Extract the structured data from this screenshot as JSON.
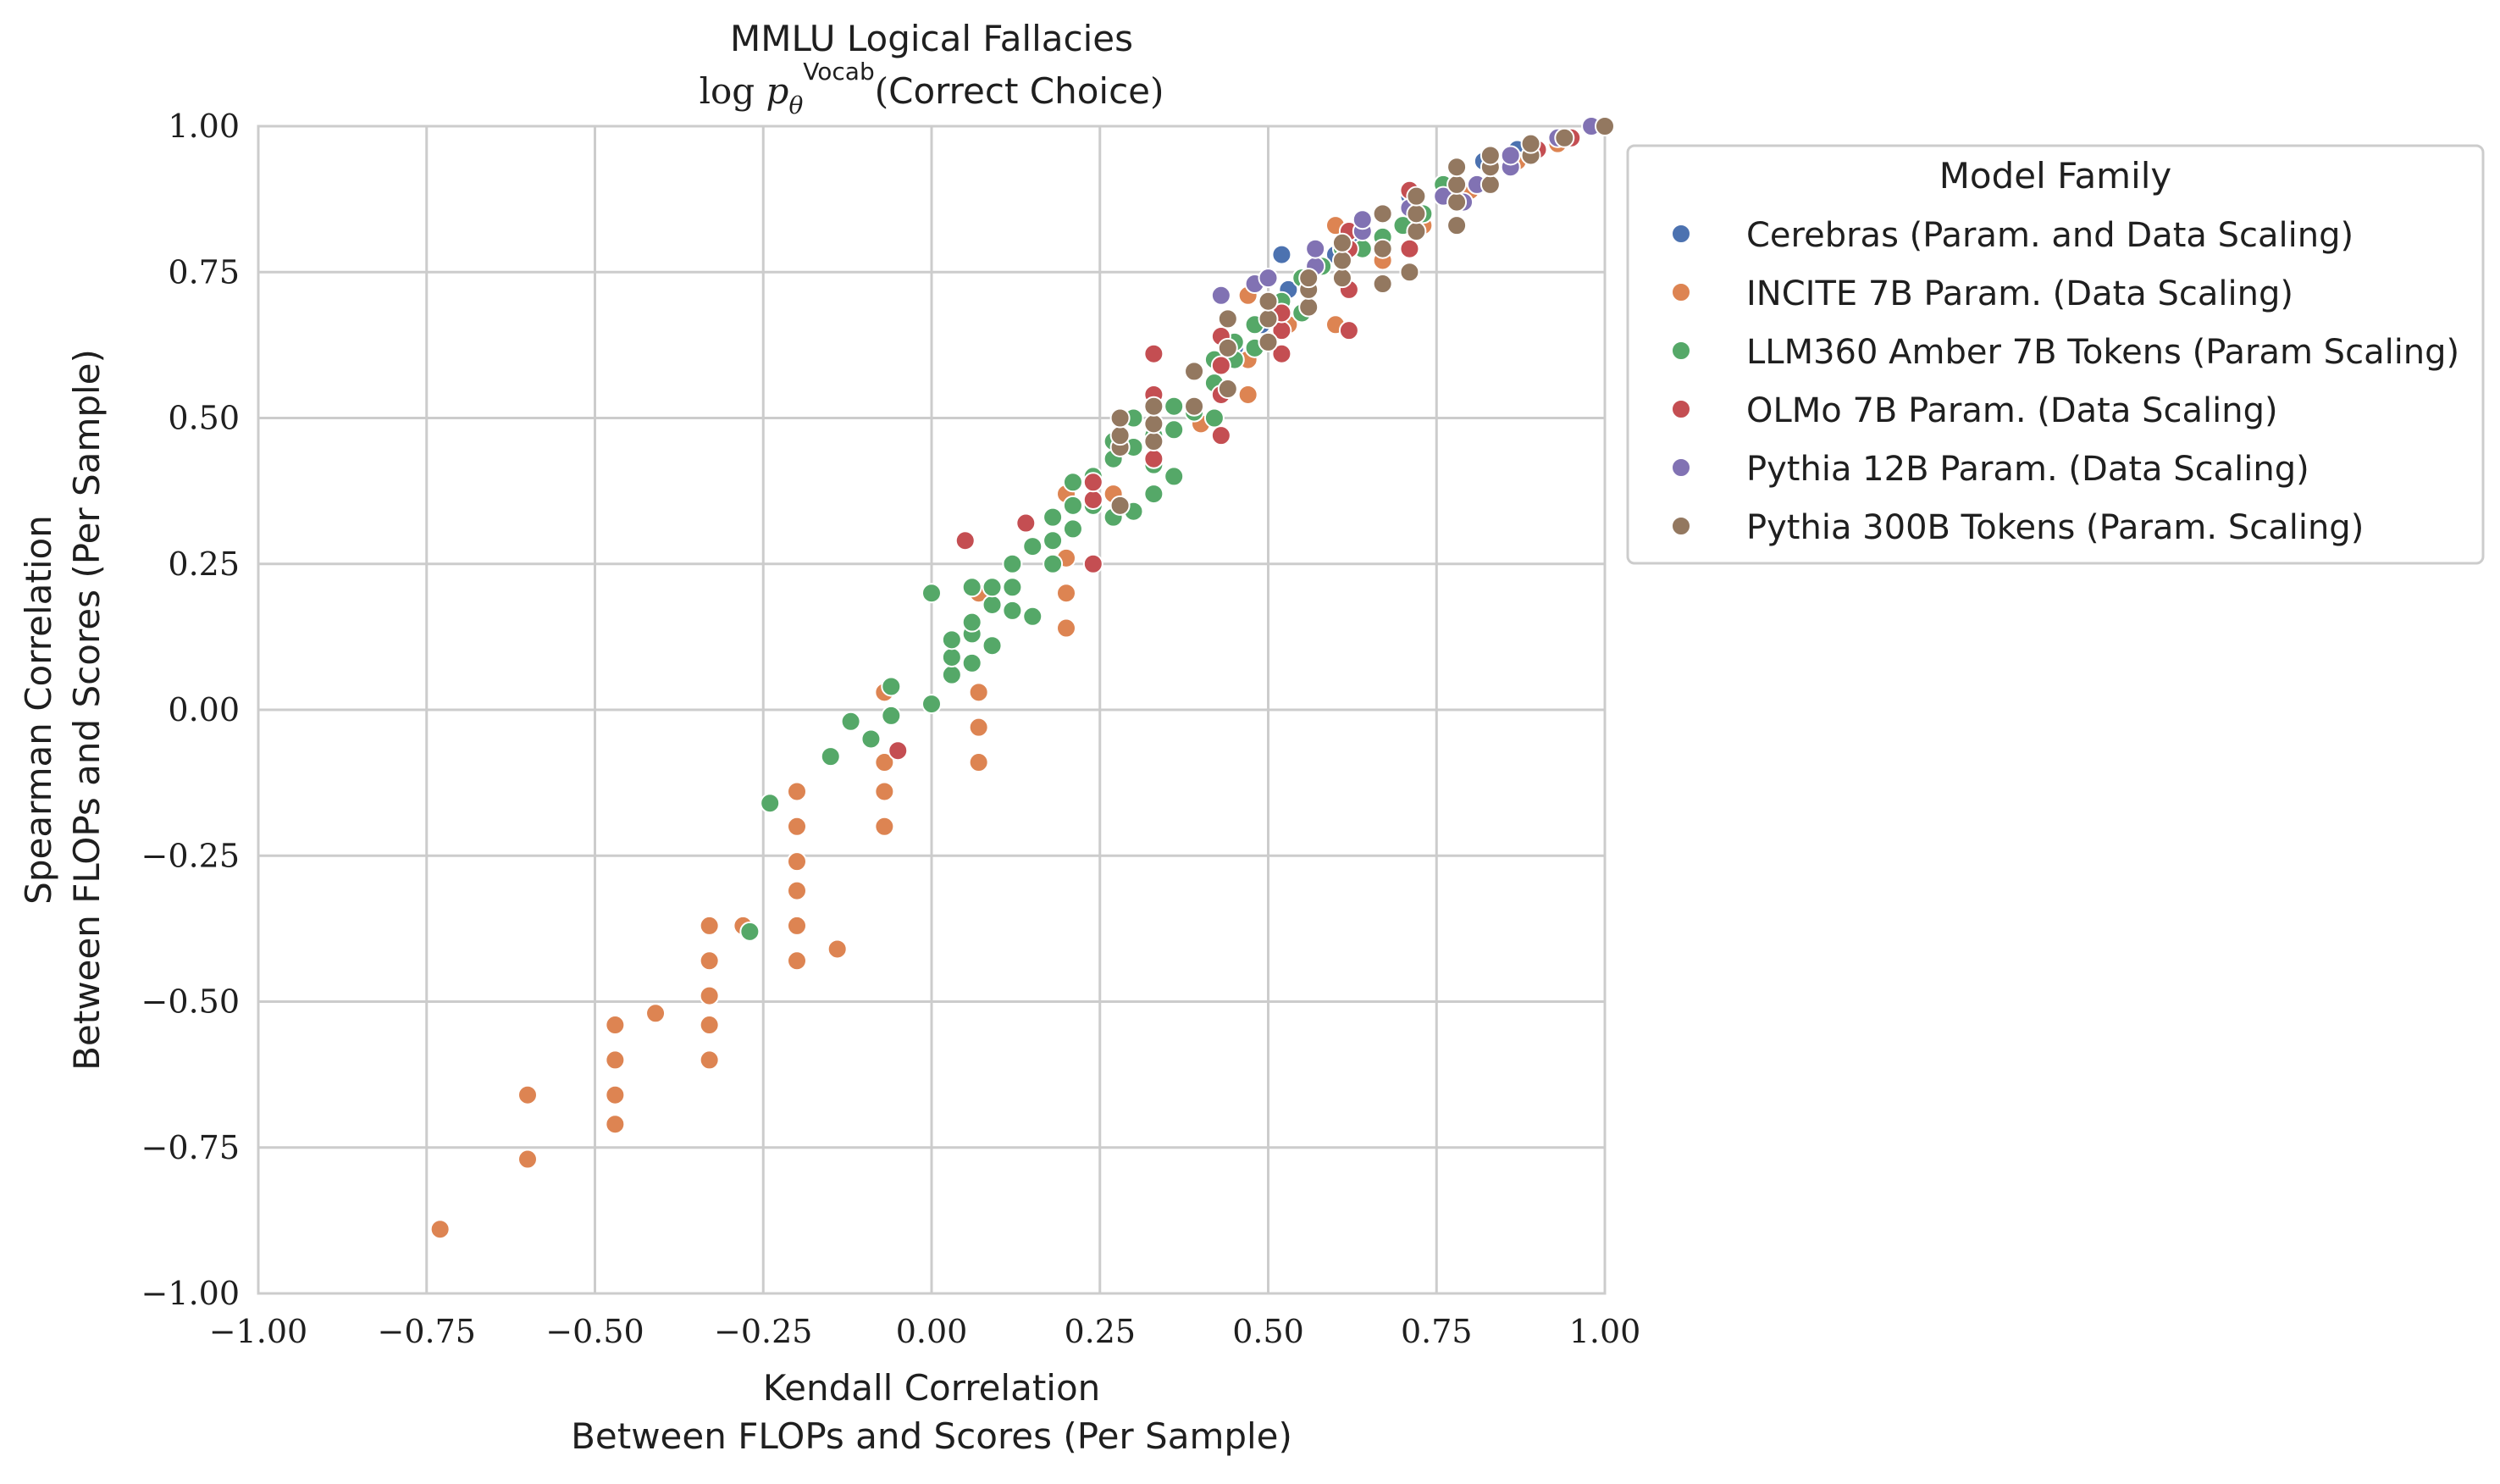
{
  "chart_data": {
    "type": "scatter",
    "title": "MMLU Logical Fallacies",
    "subtitle": "log p_θ^Vocab(Correct Choice)",
    "xlabel": [
      "Kendall Correlation",
      "Between FLOPs and Scores (Per Sample)"
    ],
    "ylabel": [
      "Spearman Correlation",
      "Between FLOPs and Scores (Per Sample)"
    ],
    "xlim": [
      -1,
      1
    ],
    "ylim": [
      -1,
      1
    ],
    "x_ticks": [
      -1,
      -0.75,
      -0.5,
      -0.25,
      0,
      0.25,
      0.5,
      0.75,
      1
    ],
    "y_ticks": [
      -1,
      -0.75,
      -0.5,
      -0.25,
      0,
      0.25,
      0.5,
      0.75,
      1
    ],
    "x_tick_labels": [
      "−1.00",
      "−0.75",
      "−0.50",
      "−0.25",
      "0.00",
      "0.25",
      "0.50",
      "0.75",
      "1.00"
    ],
    "y_tick_labels": [
      "−1.00",
      "−0.75",
      "−0.50",
      "−0.25",
      "0.00",
      "0.25",
      "0.50",
      "0.75",
      "1.00"
    ],
    "grid": true,
    "legend": {
      "title": "Model Family",
      "placement": "outside-right-top"
    },
    "series": [
      {
        "name": "Cerebras (Param. and Data Scaling)",
        "color": "#4C72B0",
        "points": [
          [
            0.52,
            0.78
          ],
          [
            0.53,
            0.72
          ],
          [
            0.6,
            0.78
          ],
          [
            0.63,
            0.8
          ],
          [
            0.71,
            0.88
          ],
          [
            0.76,
            0.9
          ],
          [
            0.82,
            0.94
          ],
          [
            0.87,
            0.96
          ],
          [
            0.94,
            0.98
          ],
          [
            1.0,
            1.0
          ],
          [
            0.45,
            0.62
          ],
          [
            0.49,
            0.66
          ]
        ]
      },
      {
        "name": "INCITE 7B Param. (Data Scaling)",
        "color": "#DD8452",
        "points": [
          [
            -0.73,
            -0.89
          ],
          [
            -0.6,
            -0.77
          ],
          [
            -0.6,
            -0.66
          ],
          [
            -0.47,
            -0.71
          ],
          [
            -0.47,
            -0.66
          ],
          [
            -0.47,
            -0.6
          ],
          [
            -0.47,
            -0.54
          ],
          [
            -0.41,
            -0.52
          ],
          [
            -0.33,
            -0.6
          ],
          [
            -0.33,
            -0.54
          ],
          [
            -0.33,
            -0.49
          ],
          [
            -0.33,
            -0.43
          ],
          [
            -0.33,
            -0.37
          ],
          [
            -0.28,
            -0.37
          ],
          [
            -0.2,
            -0.43
          ],
          [
            -0.2,
            -0.37
          ],
          [
            -0.2,
            -0.31
          ],
          [
            -0.2,
            -0.26
          ],
          [
            -0.2,
            -0.2
          ],
          [
            -0.2,
            -0.14
          ],
          [
            -0.14,
            -0.41
          ],
          [
            -0.07,
            -0.2
          ],
          [
            -0.07,
            -0.14
          ],
          [
            -0.07,
            -0.09
          ],
          [
            -0.07,
            0.03
          ],
          [
            0.07,
            -0.09
          ],
          [
            0.07,
            -0.03
          ],
          [
            0.07,
            0.03
          ],
          [
            0.07,
            0.2
          ],
          [
            0.2,
            0.14
          ],
          [
            0.2,
            0.2
          ],
          [
            0.2,
            0.26
          ],
          [
            0.2,
            0.37
          ],
          [
            0.27,
            0.37
          ],
          [
            0.33,
            0.43
          ],
          [
            0.4,
            0.49
          ],
          [
            0.47,
            0.54
          ],
          [
            0.47,
            0.6
          ],
          [
            0.47,
            0.71
          ],
          [
            0.53,
            0.66
          ],
          [
            0.6,
            0.66
          ],
          [
            0.6,
            0.83
          ],
          [
            0.67,
            0.77
          ],
          [
            0.73,
            0.83
          ],
          [
            0.8,
            0.89
          ],
          [
            0.87,
            0.94
          ],
          [
            0.93,
            0.97
          ]
        ]
      },
      {
        "name": "LLM360 Amber 7B Tokens (Param Scaling)",
        "color": "#55A868",
        "points": [
          [
            -0.24,
            -0.16
          ],
          [
            -0.27,
            -0.38
          ],
          [
            -0.15,
            -0.08
          ],
          [
            -0.12,
            -0.02
          ],
          [
            -0.09,
            -0.05
          ],
          [
            -0.06,
            -0.01
          ],
          [
            -0.06,
            0.04
          ],
          [
            0.0,
            0.01
          ],
          [
            0.0,
            0.2
          ],
          [
            0.03,
            0.06
          ],
          [
            0.03,
            0.09
          ],
          [
            0.03,
            0.12
          ],
          [
            0.06,
            0.08
          ],
          [
            0.06,
            0.13
          ],
          [
            0.06,
            0.15
          ],
          [
            0.06,
            0.21
          ],
          [
            0.09,
            0.11
          ],
          [
            0.09,
            0.18
          ],
          [
            0.09,
            0.21
          ],
          [
            0.12,
            0.17
          ],
          [
            0.12,
            0.21
          ],
          [
            0.12,
            0.25
          ],
          [
            0.15,
            0.16
          ],
          [
            0.15,
            0.28
          ],
          [
            0.18,
            0.25
          ],
          [
            0.18,
            0.29
          ],
          [
            0.18,
            0.33
          ],
          [
            0.21,
            0.31
          ],
          [
            0.21,
            0.35
          ],
          [
            0.21,
            0.39
          ],
          [
            0.24,
            0.35
          ],
          [
            0.24,
            0.4
          ],
          [
            0.27,
            0.33
          ],
          [
            0.27,
            0.43
          ],
          [
            0.27,
            0.46
          ],
          [
            0.3,
            0.34
          ],
          [
            0.3,
            0.45
          ],
          [
            0.3,
            0.5
          ],
          [
            0.33,
            0.37
          ],
          [
            0.33,
            0.42
          ],
          [
            0.33,
            0.47
          ],
          [
            0.36,
            0.4
          ],
          [
            0.36,
            0.48
          ],
          [
            0.36,
            0.52
          ],
          [
            0.39,
            0.51
          ],
          [
            0.42,
            0.5
          ],
          [
            0.42,
            0.56
          ],
          [
            0.42,
            0.6
          ],
          [
            0.45,
            0.6
          ],
          [
            0.45,
            0.63
          ],
          [
            0.48,
            0.62
          ],
          [
            0.48,
            0.66
          ],
          [
            0.5,
            0.63
          ],
          [
            0.52,
            0.7
          ],
          [
            0.55,
            0.68
          ],
          [
            0.55,
            0.74
          ],
          [
            0.58,
            0.76
          ],
          [
            0.61,
            0.74
          ],
          [
            0.61,
            0.79
          ],
          [
            0.64,
            0.79
          ],
          [
            0.67,
            0.81
          ],
          [
            0.7,
            0.83
          ],
          [
            0.73,
            0.85
          ],
          [
            0.76,
            0.88
          ],
          [
            0.76,
            0.9
          ]
        ]
      },
      {
        "name": "OLMo 7B Param. (Data Scaling)",
        "color": "#C44E52",
        "points": [
          [
            -0.05,
            -0.07
          ],
          [
            0.05,
            0.29
          ],
          [
            0.14,
            0.32
          ],
          [
            0.24,
            0.25
          ],
          [
            0.24,
            0.36
          ],
          [
            0.24,
            0.39
          ],
          [
            0.33,
            0.43
          ],
          [
            0.33,
            0.54
          ],
          [
            0.33,
            0.61
          ],
          [
            0.43,
            0.47
          ],
          [
            0.43,
            0.54
          ],
          [
            0.43,
            0.59
          ],
          [
            0.43,
            0.64
          ],
          [
            0.52,
            0.61
          ],
          [
            0.52,
            0.65
          ],
          [
            0.52,
            0.68
          ],
          [
            0.62,
            0.65
          ],
          [
            0.62,
            0.72
          ],
          [
            0.62,
            0.79
          ],
          [
            0.62,
            0.82
          ],
          [
            0.71,
            0.79
          ],
          [
            0.71,
            0.89
          ],
          [
            0.81,
            0.9
          ],
          [
            0.9,
            0.96
          ],
          [
            0.95,
            0.98
          ]
        ]
      },
      {
        "name": "Pythia 12B Param. (Data Scaling)",
        "color": "#8172B3",
        "points": [
          [
            0.43,
            0.71
          ],
          [
            0.48,
            0.73
          ],
          [
            0.5,
            0.74
          ],
          [
            0.57,
            0.76
          ],
          [
            0.57,
            0.79
          ],
          [
            0.64,
            0.82
          ],
          [
            0.64,
            0.84
          ],
          [
            0.71,
            0.86
          ],
          [
            0.76,
            0.88
          ],
          [
            0.79,
            0.87
          ],
          [
            0.81,
            0.9
          ],
          [
            0.86,
            0.93
          ],
          [
            0.86,
            0.95
          ],
          [
            0.93,
            0.98
          ],
          [
            0.98,
            1.0
          ]
        ]
      },
      {
        "name": "Pythia 300B Tokens (Param. Scaling)",
        "color": "#937860",
        "points": [
          [
            0.28,
            0.35
          ],
          [
            0.28,
            0.45
          ],
          [
            0.28,
            0.47
          ],
          [
            0.28,
            0.5
          ],
          [
            0.33,
            0.46
          ],
          [
            0.33,
            0.49
          ],
          [
            0.33,
            0.52
          ],
          [
            0.39,
            0.52
          ],
          [
            0.39,
            0.58
          ],
          [
            0.44,
            0.55
          ],
          [
            0.44,
            0.62
          ],
          [
            0.44,
            0.67
          ],
          [
            0.5,
            0.63
          ],
          [
            0.5,
            0.67
          ],
          [
            0.5,
            0.7
          ],
          [
            0.56,
            0.69
          ],
          [
            0.56,
            0.72
          ],
          [
            0.56,
            0.74
          ],
          [
            0.61,
            0.74
          ],
          [
            0.61,
            0.77
          ],
          [
            0.61,
            0.8
          ],
          [
            0.67,
            0.73
          ],
          [
            0.67,
            0.79
          ],
          [
            0.67,
            0.85
          ],
          [
            0.71,
            0.75
          ],
          [
            0.72,
            0.82
          ],
          [
            0.72,
            0.85
          ],
          [
            0.72,
            0.88
          ],
          [
            0.78,
            0.83
          ],
          [
            0.78,
            0.87
          ],
          [
            0.78,
            0.9
          ],
          [
            0.78,
            0.93
          ],
          [
            0.83,
            0.9
          ],
          [
            0.83,
            0.93
          ],
          [
            0.83,
            0.95
          ],
          [
            0.89,
            0.95
          ],
          [
            0.89,
            0.97
          ],
          [
            0.94,
            0.98
          ],
          [
            1.0,
            1.0
          ]
        ]
      }
    ]
  }
}
